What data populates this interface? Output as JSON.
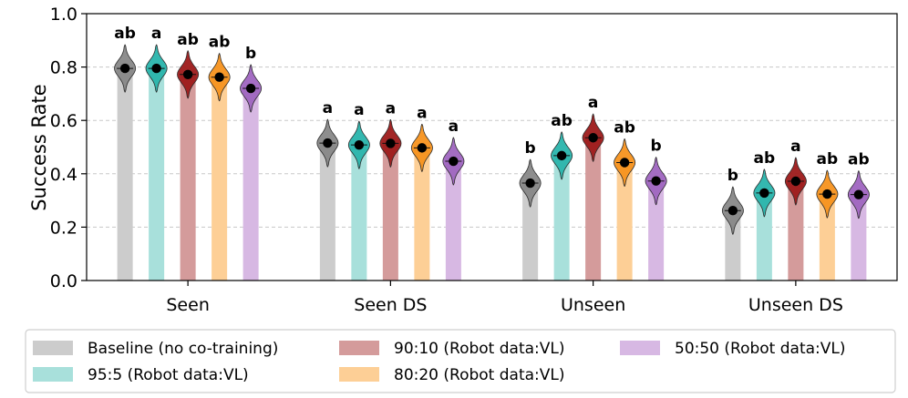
{
  "chart_data": {
    "type": "bar",
    "title": "",
    "xlabel": "",
    "ylabel": "Success Rate",
    "ylim": [
      0.0,
      1.0
    ],
    "yticks": [
      "0.0",
      "0.2",
      "0.4",
      "0.6",
      "0.8",
      "1.0"
    ],
    "grid": "horizontal dashed",
    "legend_position": "bottom",
    "categories": [
      "Seen",
      "Seen DS",
      "Unseen",
      "Unseen DS"
    ],
    "series": [
      {
        "name": "Baseline (no co-training)",
        "bar_color": "#cccccc",
        "violin_color": "#888888",
        "values": [
          0.795,
          0.515,
          0.365,
          0.262
        ],
        "significance": [
          "ab",
          "a",
          "b",
          "b"
        ]
      },
      {
        "name": "95:5 (Robot data:VL)",
        "bar_color": "#a8e0db",
        "violin_color": "#2ab5ac",
        "values": [
          0.795,
          0.508,
          0.468,
          0.328
        ],
        "significance": [
          "a",
          "a",
          "ab",
          "ab"
        ]
      },
      {
        "name": "90:10 (Robot data:VL)",
        "bar_color": "#d49b9b",
        "violin_color": "#9e1b1b",
        "values": [
          0.772,
          0.514,
          0.535,
          0.372
        ],
        "significance": [
          "ab",
          "a",
          "a",
          "a"
        ]
      },
      {
        "name": "80:20 (Robot data:VL)",
        "bar_color": "#fdcf96",
        "violin_color": "#f7931e",
        "values": [
          0.762,
          0.497,
          0.442,
          0.324
        ],
        "significance": [
          "ab",
          "a",
          "ab",
          "ab"
        ]
      },
      {
        "name": "50:50 (Robot data:VL)",
        "bar_color": "#d7b8e3",
        "violin_color": "#a066c0",
        "values": [
          0.72,
          0.447,
          0.373,
          0.322
        ],
        "significance": [
          "b",
          "a",
          "b",
          "ab"
        ]
      }
    ]
  }
}
